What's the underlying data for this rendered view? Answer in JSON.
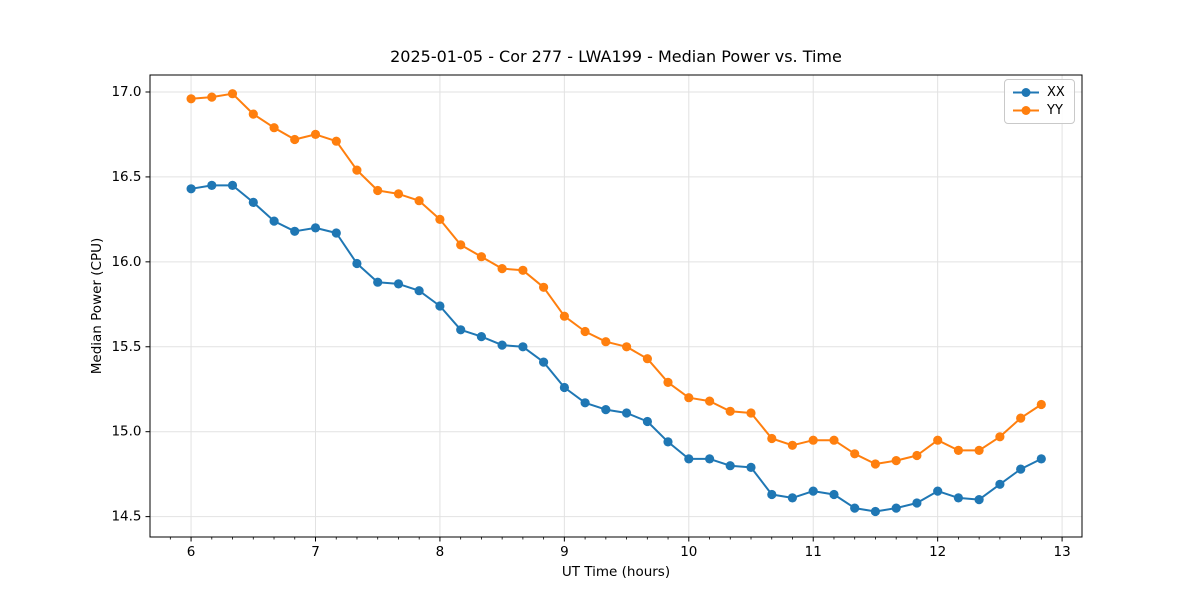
{
  "chart_data": {
    "type": "line",
    "title": "2025-01-05 - Cor 277 - LWA199 - Median Power vs. Time",
    "xlabel": "UT Time (hours)",
    "ylabel": "Median Power (CPU)",
    "xlim": [
      5.67,
      13.16
    ],
    "ylim": [
      14.38,
      17.1
    ],
    "xticks": [
      6,
      7,
      8,
      9,
      10,
      11,
      12,
      13
    ],
    "yticks": [
      14.5,
      15.0,
      15.5,
      16.0,
      16.5,
      17.0
    ],
    "minor_xtick_interval_hours": 0.1667,
    "grid": true,
    "legend_position": "upper right",
    "x": [
      6.0,
      6.167,
      6.333,
      6.5,
      6.667,
      6.833,
      7.0,
      7.167,
      7.333,
      7.5,
      7.667,
      7.833,
      8.0,
      8.167,
      8.333,
      8.5,
      8.667,
      8.833,
      9.0,
      9.167,
      9.333,
      9.5,
      9.667,
      9.833,
      10.0,
      10.167,
      10.333,
      10.5,
      10.667,
      10.833,
      11.0,
      11.167,
      11.333,
      11.5,
      11.667,
      11.833,
      12.0,
      12.167,
      12.333,
      12.5,
      12.667,
      12.833
    ],
    "series": [
      {
        "name": "XX",
        "color": "#1f77b4",
        "marker": "circle",
        "values": [
          16.43,
          16.45,
          16.45,
          16.35,
          16.24,
          16.18,
          16.2,
          16.17,
          15.99,
          15.88,
          15.87,
          15.83,
          15.74,
          15.6,
          15.56,
          15.51,
          15.5,
          15.41,
          15.26,
          15.17,
          15.13,
          15.11,
          15.06,
          14.94,
          14.84,
          14.84,
          14.8,
          14.79,
          14.63,
          14.61,
          14.65,
          14.63,
          14.55,
          14.53,
          14.55,
          14.58,
          14.65,
          14.61,
          14.6,
          14.69,
          14.78,
          14.84
        ]
      },
      {
        "name": "YY",
        "color": "#ff7f0e",
        "marker": "circle",
        "values": [
          16.96,
          16.97,
          16.99,
          16.87,
          16.79,
          16.72,
          16.75,
          16.71,
          16.54,
          16.42,
          16.4,
          16.36,
          16.25,
          16.1,
          16.03,
          15.96,
          15.95,
          15.85,
          15.68,
          15.59,
          15.53,
          15.5,
          15.43,
          15.29,
          15.2,
          15.18,
          15.12,
          15.11,
          14.96,
          14.92,
          14.95,
          14.95,
          14.87,
          14.81,
          14.83,
          14.86,
          14.95,
          14.89,
          14.89,
          14.97,
          15.08,
          15.16
        ]
      }
    ]
  },
  "colors": {
    "grid": "#e2e2e2",
    "spine": "#000000",
    "text": "#000000",
    "legend_border": "#c9c9c9",
    "background": "#ffffff"
  }
}
